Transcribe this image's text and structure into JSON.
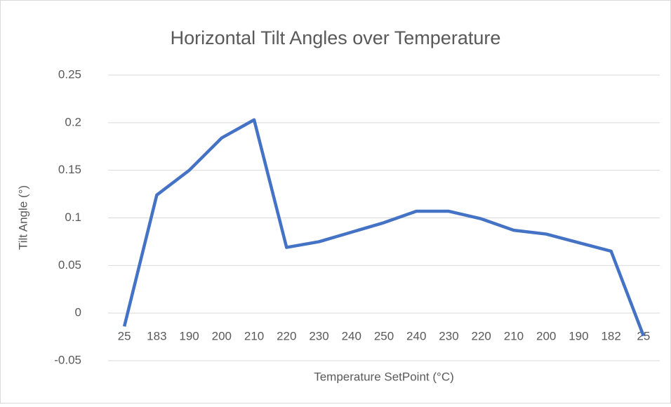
{
  "chart_data": {
    "type": "line",
    "title": "Horizontal Tilt Angles over Temperature",
    "x_label": "Temperature SetPoint (°C)",
    "y_label": "Tilt Angle (°)",
    "categories": [
      "25",
      "183",
      "190",
      "200",
      "210",
      "220",
      "230",
      "240",
      "250",
      "240",
      "230",
      "220",
      "210",
      "200",
      "190",
      "182",
      "25"
    ],
    "series": [
      {
        "name": "Tilt Angle",
        "color": "#4472c4",
        "values": [
          -0.014,
          0.124,
          0.15,
          0.184,
          0.203,
          0.069,
          0.075,
          0.085,
          0.095,
          0.107,
          0.107,
          0.099,
          0.087,
          0.083,
          0.074,
          0.065,
          -0.024
        ]
      }
    ],
    "ylim": [
      -0.05,
      0.25
    ],
    "yticks": [
      -0.05,
      0,
      0.05,
      0.1,
      0.15,
      0.2,
      0.25
    ],
    "grid": true
  }
}
